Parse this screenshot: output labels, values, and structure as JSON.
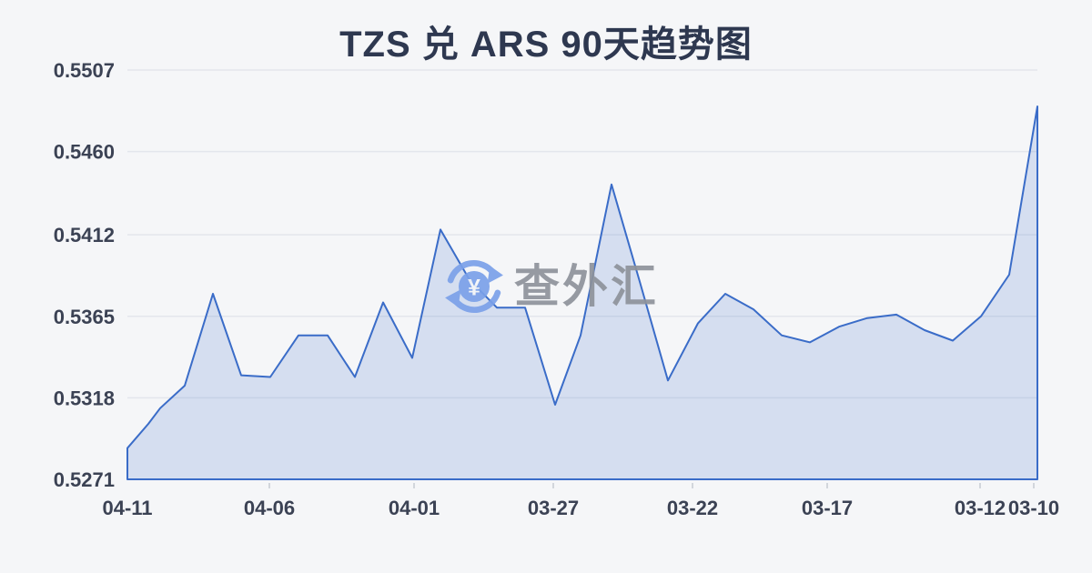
{
  "title": "TZS 兑 ARS 90天趋势图",
  "watermark": {
    "text": "查外汇",
    "icon_symbol": "¥"
  },
  "colors": {
    "background": "#f5f6f8",
    "title_text": "#2e3850",
    "axis_text": "#3b4254",
    "grid_line": "#e3e6ec",
    "series_line": "#3a6cc8",
    "series_fill": "#3a6cc8",
    "series_fill_opacity": "0.17",
    "watermark_text": "#8e939b",
    "watermark_icon": "#7ba1e9"
  },
  "chart_data": {
    "type": "area",
    "title": "TZS 兑 ARS 90天趋势图",
    "xlabel": "",
    "ylabel": "",
    "grid": true,
    "legend": "none",
    "ylim": [
      0.5271,
      0.5507
    ],
    "y_ticks": [
      "0.5507",
      "0.5460",
      "0.5412",
      "0.5365",
      "0.5318",
      "0.5271"
    ],
    "x_ticks": [
      {
        "label": "04-11",
        "f": 0.0
      },
      {
        "label": "04-06",
        "f": 0.156
      },
      {
        "label": "04-01",
        "f": 0.315
      },
      {
        "label": "03-27",
        "f": 0.468
      },
      {
        "label": "03-22",
        "f": 0.621
      },
      {
        "label": "03-17",
        "f": 0.769
      },
      {
        "label": "03-12",
        "f": 0.937
      },
      {
        "label": "03-10",
        "f": 0.996
      }
    ],
    "x_axis_note": "dates run from most recent (04-11) on the left to oldest (03-10) on the right",
    "points": [
      {
        "f": 0.0,
        "v": 0.5289
      },
      {
        "f": 0.023,
        "v": 0.5303
      },
      {
        "f": 0.036,
        "v": 0.5312
      },
      {
        "f": 0.063,
        "v": 0.5325
      },
      {
        "f": 0.094,
        "v": 0.5378
      },
      {
        "f": 0.125,
        "v": 0.5331
      },
      {
        "f": 0.157,
        "v": 0.533
      },
      {
        "f": 0.188,
        "v": 0.5354
      },
      {
        "f": 0.22,
        "v": 0.5354
      },
      {
        "f": 0.25,
        "v": 0.533
      },
      {
        "f": 0.281,
        "v": 0.5373
      },
      {
        "f": 0.313,
        "v": 0.5341
      },
      {
        "f": 0.344,
        "v": 0.5415
      },
      {
        "f": 0.376,
        "v": 0.5386
      },
      {
        "f": 0.406,
        "v": 0.537
      },
      {
        "f": 0.437,
        "v": 0.537
      },
      {
        "f": 0.47,
        "v": 0.5314
      },
      {
        "f": 0.498,
        "v": 0.5354
      },
      {
        "f": 0.532,
        "v": 0.5441
      },
      {
        "f": 0.563,
        "v": 0.5385
      },
      {
        "f": 0.594,
        "v": 0.5328
      },
      {
        "f": 0.627,
        "v": 0.5361
      },
      {
        "f": 0.657,
        "v": 0.5378
      },
      {
        "f": 0.688,
        "v": 0.5369
      },
      {
        "f": 0.719,
        "v": 0.5354
      },
      {
        "f": 0.75,
        "v": 0.535
      },
      {
        "f": 0.782,
        "v": 0.5359
      },
      {
        "f": 0.813,
        "v": 0.5364
      },
      {
        "f": 0.845,
        "v": 0.5366
      },
      {
        "f": 0.876,
        "v": 0.5357
      },
      {
        "f": 0.907,
        "v": 0.5351
      },
      {
        "f": 0.938,
        "v": 0.5365
      },
      {
        "f": 0.969,
        "v": 0.5389
      },
      {
        "f": 1.0,
        "v": 0.5486
      }
    ]
  }
}
